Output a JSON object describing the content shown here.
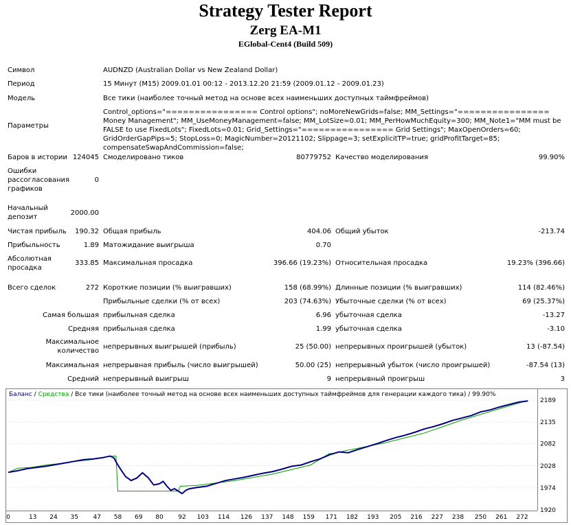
{
  "header": {
    "title": "Strategy Tester Report",
    "subtitle": "Zerg EA-M1",
    "server": "EGlobal-Cent4 (Build 509)"
  },
  "info": {
    "symbol_label": "Символ",
    "symbol_value": "AUDNZD (Australian Dollar vs New Zealand Dollar)",
    "period_label": "Период",
    "period_value": "15 Минут (M15) 2009.01.01 00:12 - 2013.12.20 21:59 (2009.01.12 - 2009.01.23)",
    "model_label": "Модель",
    "model_value": "Все тики (наиболее точный метод на основе всех наименьших доступных таймфреймов)",
    "params_label": "Параметры",
    "params_value": "Control_options=\"================ Control options\"; noMoreNewGrids=false; MM_Settings=\"================ Money Management\"; MM_UseMoneyManagement=false; MM_LotSize=0.01; MM_PerHowMuchEquity=300; MM_Note1=\"MM must be FALSE to use FixedLots\"; FixedLots=0.01; Grid_Settings=\"================ Grid Settings\"; MaxOpenOrders=60; GridOrderGapPips=5; StopLoss=0; MagicNumber=20121102; Slippage=3; setExplicitTP=true; gridProfitTarget=85; compensateSwapAndCommission=false;"
  },
  "stats": {
    "bars_label": "Баров в истории",
    "bars_value": "124045",
    "ticks_label": "Смоделировано тиков",
    "ticks_value": "80779752",
    "quality_label": "Качество моделирования",
    "quality_value": "99.90%",
    "errors_label": "Ошибки рассогласования графиков",
    "errors_value": "0",
    "deposit_label": "Начальный депозит",
    "deposit_value": "2000.00",
    "net_label": "Чистая прибыль",
    "net_value": "190.32",
    "gross_profit_label": "Общая прибыль",
    "gross_profit_value": "404.06",
    "gross_loss_label": "Общий убыток",
    "gross_loss_value": "-213.74",
    "pf_label": "Прибыльность",
    "pf_value": "1.89",
    "expected_label": "Матожидание выигрыша",
    "expected_value": "0.70",
    "abs_dd_label": "Абсолютная просадка",
    "abs_dd_value": "333.85",
    "max_dd_label": "Максимальная просадка",
    "max_dd_value": "396.66 (19.23%)",
    "rel_dd_label": "Относительная просадка",
    "rel_dd_value": "19.23% (396.66)",
    "trades_label": "Всего сделок",
    "trades_value": "272",
    "short_label": "Короткие позиции (% выигравших)",
    "short_value": "158 (68.99%)",
    "long_label": "Длинные позиции (% выигравших)",
    "long_value": "114 (82.46%)",
    "profit_trades_label": "Прибыльные сделки (% от всех)",
    "profit_trades_value": "203 (74.63%)",
    "loss_trades_label": "Убыточные сделки (% от всех)",
    "loss_trades_value": "69 (25.37%)",
    "largest_label": "Самая большая",
    "largest_profit_label": "прибыльная сделка",
    "largest_profit_value": "6.96",
    "largest_loss_label": "убыточная сделка",
    "largest_loss_value": "-13.27",
    "average_label": "Средняя",
    "average_profit_label": "прибыльная сделка",
    "average_profit_value": "1.99",
    "average_loss_label": "убыточная сделка",
    "average_loss_value": "-3.10",
    "max_count_label": "Максимальное количество",
    "cons_wins_label": "непрерывных выигрышей (прибыль)",
    "cons_wins_value": "25 (50.00)",
    "cons_losses_label": "непрерывных проигрышей (убыток)",
    "cons_losses_value": "13 (-87.54)",
    "max_label": "Максимальная",
    "cons_profit_label": "непрерывная прибыль (число выигрышей)",
    "cons_profit_value": "50.00 (25)",
    "cons_loss_label": "непрерывный убыток (число проигрышей)",
    "cons_loss_value": "-87.54 (13)",
    "avg_label": "Средний",
    "avg_wins_label": "непрерывный выигрыш",
    "avg_wins_value": "9",
    "avg_losses_label": "непрерывный проигрыш",
    "avg_losses_value": "3"
  },
  "chart_data": {
    "type": "line",
    "legend": {
      "balance": "Баланс",
      "sep1": " / ",
      "equity": "Средства",
      "sep2": " / ",
      "note": "Все тики (наиболее точный метод на основе всех наименьших доступных таймфреймов для генерации каждого тика) / 99.90%"
    },
    "x_ticks": [
      "0",
      "13",
      "24",
      "35",
      "47",
      "58",
      "69",
      "80",
      "92",
      "103",
      "114",
      "126",
      "137",
      "148",
      "159",
      "171",
      "182",
      "193",
      "205",
      "216",
      "227",
      "238",
      "250",
      "261",
      "272"
    ],
    "y_ticks": [
      "2189",
      "2135",
      "2082",
      "2028",
      "1974",
      "1920"
    ],
    "x_range": [
      0,
      280
    ],
    "y_range": [
      1920,
      2189
    ],
    "colors": {
      "balance": "#000080",
      "equity": "#00a000",
      "grid": "#c0c0c0",
      "border": "#808080"
    },
    "series": [
      {
        "name": "Баланс",
        "x": [
          0,
          5,
          10,
          15,
          20,
          25,
          30,
          35,
          40,
          45,
          50,
          52,
          54,
          56,
          58,
          60,
          62,
          65,
          68,
          71,
          74,
          77,
          80,
          82,
          84,
          86,
          88,
          90,
          92,
          94,
          96,
          100,
          105,
          110,
          115,
          120,
          125,
          130,
          135,
          140,
          145,
          150,
          155,
          160,
          165,
          170,
          175,
          180,
          185,
          190,
          195,
          200,
          205,
          210,
          215,
          220,
          225,
          230,
          235,
          240,
          245,
          250,
          255,
          260,
          265,
          270,
          275
        ],
        "y": [
          2012,
          2016,
          2021,
          2024,
          2027,
          2031,
          2035,
          2039,
          2043,
          2045,
          2048,
          2050,
          2052,
          2047,
          2030,
          2016,
          2002,
          1992,
          1998,
          2011,
          1999,
          1981,
          1984,
          1990,
          1978,
          1968,
          1972,
          1966,
          1960,
          1968,
          1972,
          1975,
          1978,
          1985,
          1992,
          1996,
          2000,
          2005,
          2010,
          2014,
          2020,
          2027,
          2030,
          2038,
          2045,
          2055,
          2062,
          2060,
          2068,
          2075,
          2082,
          2090,
          2097,
          2103,
          2110,
          2118,
          2124,
          2131,
          2139,
          2145,
          2151,
          2160,
          2165,
          2172,
          2178,
          2184,
          2187
        ]
      },
      {
        "name": "Средства",
        "x": [
          0,
          5,
          12,
          20,
          28,
          36,
          44,
          52,
          56,
          57,
          58,
          90,
          91,
          100,
          120,
          140,
          160,
          170,
          171,
          200,
          220,
          240,
          260,
          275
        ],
        "y": [
          2012,
          2022,
          2024,
          2030,
          2034,
          2039,
          2043,
          2050,
          2052,
          2052,
          1966,
          1966,
          1978,
          1980,
          1992,
          2008,
          2030,
          2058,
          2058,
          2085,
          2108,
          2140,
          2168,
          2188
        ]
      }
    ]
  }
}
